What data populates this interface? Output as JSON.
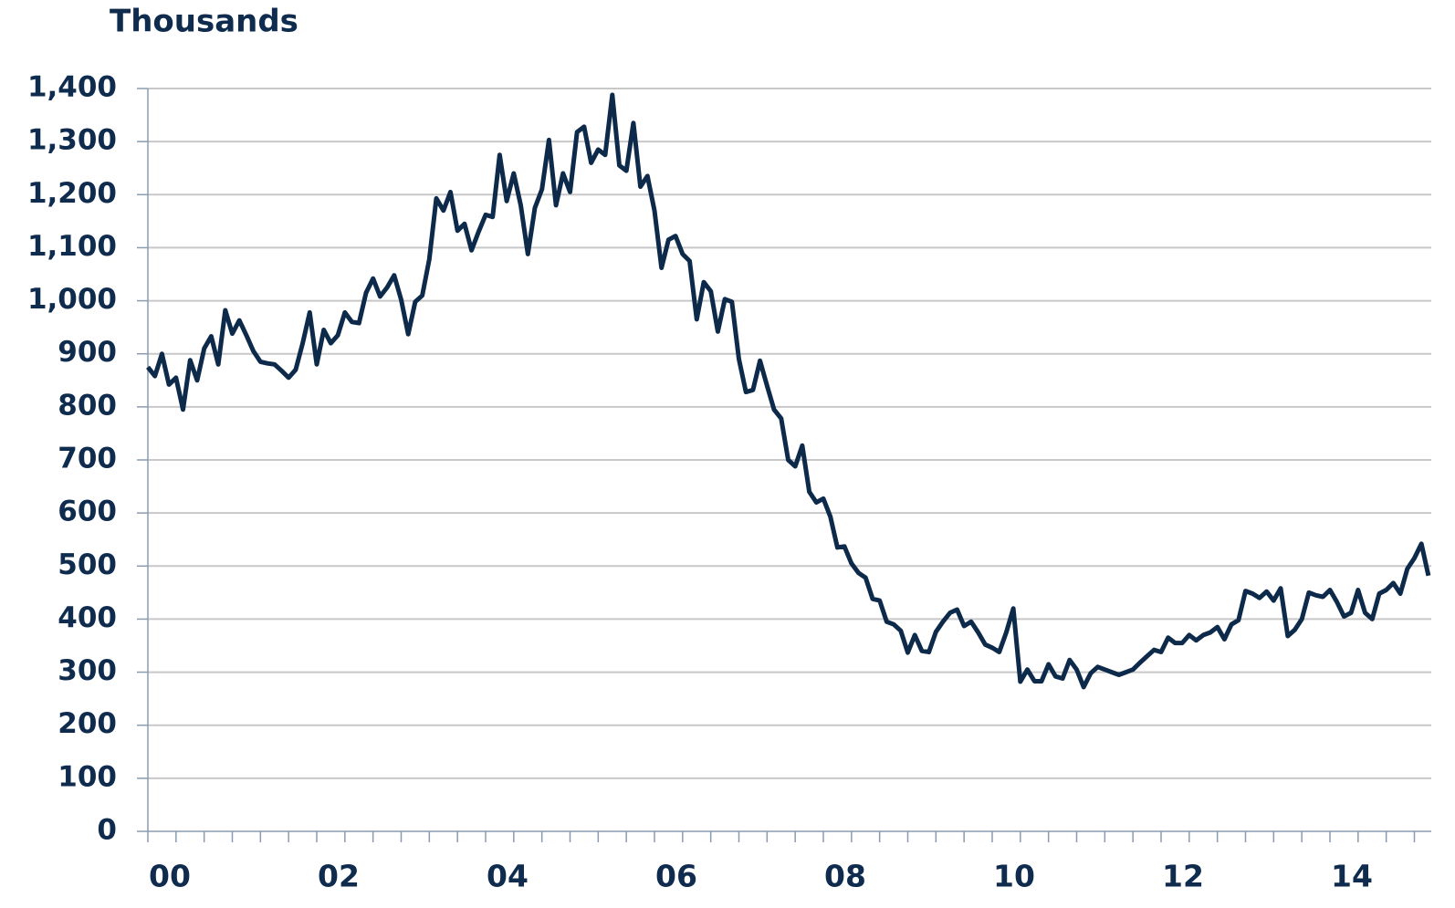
{
  "chart_data": {
    "type": "line",
    "title": "Thousands",
    "x": [
      0,
      1,
      2,
      3,
      4,
      5,
      6,
      7,
      8,
      9,
      10,
      11,
      12,
      13,
      14,
      15,
      16,
      17,
      18,
      19,
      20,
      21,
      22,
      23,
      24,
      25,
      26,
      27,
      28,
      29,
      30,
      31,
      32,
      33,
      34,
      35,
      36,
      37,
      38,
      39,
      40,
      41,
      42,
      43,
      44,
      45,
      46,
      47,
      48,
      49,
      50,
      51,
      52,
      53,
      54,
      55,
      56,
      57,
      58,
      59,
      60,
      61,
      62,
      63,
      64,
      65,
      66,
      67,
      68,
      69,
      70,
      71,
      72,
      73,
      74,
      75,
      76,
      77,
      78,
      79,
      80,
      81,
      82,
      83,
      84,
      85,
      86,
      87,
      88,
      89,
      90,
      91,
      92,
      93,
      94,
      95,
      96,
      97,
      98,
      99,
      100,
      101,
      102,
      103,
      104,
      105,
      106,
      107,
      108,
      109,
      110,
      111,
      112,
      113,
      114,
      115,
      116,
      117,
      118,
      119,
      120,
      121,
      122,
      123,
      124,
      125,
      126,
      127,
      128,
      129,
      130,
      131,
      132,
      133,
      134,
      135,
      136,
      137,
      138,
      139,
      140,
      141,
      142,
      143,
      144,
      145,
      146,
      147,
      148,
      149,
      150,
      151,
      152,
      153,
      154,
      155,
      156,
      157,
      158,
      159,
      160,
      161,
      162,
      163,
      164,
      165,
      166,
      167,
      168,
      169,
      170,
      171,
      172,
      173,
      174,
      175,
      176,
      177,
      178,
      179,
      180,
      181,
      182
    ],
    "series": [
      {
        "color": "#0d2a4a",
        "values": [
          875,
          858,
          900,
          842,
          855,
          795,
          888,
          850,
          910,
          933,
          880,
          982,
          938,
          963,
          935,
          905,
          885,
          882,
          880,
          868,
          855,
          870,
          920,
          978,
          880,
          945,
          920,
          935,
          978,
          960,
          958,
          1015,
          1042,
          1008,
          1025,
          1048,
          1002,
          937,
          998,
          1010,
          1078,
          1193,
          1170,
          1205,
          1132,
          1145,
          1095,
          1130,
          1162,
          1158,
          1275,
          1188,
          1240,
          1180,
          1088,
          1175,
          1210,
          1303,
          1180,
          1240,
          1205,
          1318,
          1328,
          1260,
          1285,
          1275,
          1388,
          1255,
          1245,
          1335,
          1215,
          1235,
          1170,
          1062,
          1115,
          1122,
          1088,
          1075,
          965,
          1035,
          1018,
          942,
          1003,
          998,
          890,
          828,
          832,
          887,
          840,
          795,
          778,
          700,
          688,
          727,
          640,
          620,
          627,
          593,
          535,
          537,
          505,
          487,
          478,
          438,
          435,
          395,
          390,
          378,
          337,
          370,
          340,
          338,
          376,
          395,
          412,
          418,
          387,
          395,
          375,
          352,
          346,
          338,
          375,
          420,
          282,
          305,
          283,
          283,
          315,
          292,
          288,
          323,
          305,
          272,
          298,
          310,
          305,
          300,
          295,
          300,
          305,
          318,
          330,
          342,
          338,
          365,
          355,
          355,
          370,
          360,
          370,
          375,
          385,
          362,
          390,
          398,
          453,
          448,
          440,
          452,
          435,
          458,
          368,
          380,
          400,
          450,
          445,
          442,
          455,
          432,
          405,
          412,
          455,
          412,
          400,
          448,
          455,
          468,
          448,
          495,
          515,
          542,
          482
        ]
      }
    ],
    "xlim": [
      0,
      182.4
    ],
    "xticks": [
      {
        "value": 0,
        "label": "00"
      },
      {
        "value": 24,
        "label": "02"
      },
      {
        "value": 48,
        "label": "04"
      },
      {
        "value": 72,
        "label": "06"
      },
      {
        "value": 96,
        "label": "08"
      },
      {
        "value": 120,
        "label": "10"
      },
      {
        "value": 144,
        "label": "12"
      },
      {
        "value": 168,
        "label": "14"
      }
    ],
    "xminorticks": [
      0,
      4,
      8,
      12,
      16,
      20,
      24,
      28,
      32,
      36,
      40,
      44,
      48,
      52,
      56,
      60,
      64,
      68,
      72,
      76,
      80,
      84,
      88,
      92,
      96,
      100,
      104,
      108,
      112,
      116,
      120,
      124,
      128,
      132,
      136,
      140,
      144,
      148,
      152,
      156,
      160,
      164,
      168,
      172,
      176,
      180
    ],
    "ylim": [
      0,
      1400
    ],
    "yticks": [
      0,
      100,
      200,
      300,
      400,
      500,
      600,
      700,
      800,
      900,
      {
        "value": 1000,
        "label": "1,000"
      },
      {
        "value": 1100,
        "label": "1,100"
      },
      {
        "value": 1200,
        "label": "1,200"
      },
      {
        "value": 1300,
        "label": "1,300"
      },
      {
        "value": 1400,
        "label": "1,400"
      }
    ],
    "grid": true
  }
}
